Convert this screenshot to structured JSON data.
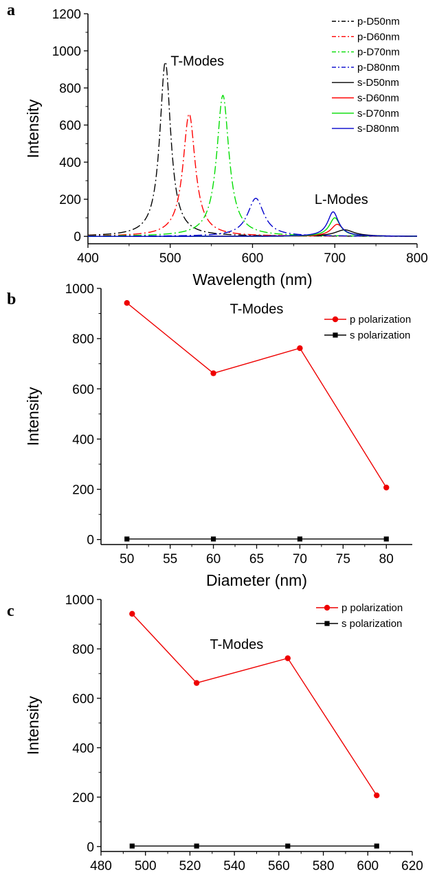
{
  "chart_data": [
    {
      "panel": "a",
      "type": "line",
      "xlabel": "Wavelength (nm)",
      "ylabel": "Intensity",
      "xlim": [
        400,
        800
      ],
      "ylim": [
        -40,
        1200
      ],
      "xticks": [
        400,
        500,
        600,
        700,
        800
      ],
      "yticks": [
        0,
        200,
        400,
        600,
        800,
        1000,
        1200
      ],
      "annotations": [
        {
          "text": "T-Modes",
          "x": 533,
          "y": 920
        },
        {
          "text": "L-Modes",
          "x": 708,
          "y": 175
        }
      ],
      "legend_position": "top-right",
      "series": [
        {
          "name": "p-D50nm",
          "color": "#000000",
          "dash": "dashdot",
          "peaks": [
            {
              "center": 494,
              "height": 940,
              "width": 8
            }
          ]
        },
        {
          "name": "p-D60nm",
          "color": "#ff0000",
          "dash": "dashdot",
          "peaks": [
            {
              "center": 523,
              "height": 660,
              "width": 9
            }
          ]
        },
        {
          "name": "p-D70nm",
          "color": "#00dd00",
          "dash": "dashdot",
          "peaks": [
            {
              "center": 564,
              "height": 760,
              "width": 9
            }
          ]
        },
        {
          "name": "p-D80nm",
          "color": "#0000cc",
          "dash": "dashdot",
          "peaks": [
            {
              "center": 604,
              "height": 205,
              "width": 12
            }
          ]
        },
        {
          "name": "s-D50nm",
          "color": "#000000",
          "dash": "solid",
          "peaks": [
            {
              "center": 712,
              "height": 35,
              "width": 14
            }
          ]
        },
        {
          "name": "s-D60nm",
          "color": "#ff0000",
          "dash": "solid",
          "peaks": [
            {
              "center": 703,
              "height": 65,
              "width": 9
            }
          ]
        },
        {
          "name": "s-D70nm",
          "color": "#00dd00",
          "dash": "solid",
          "peaks": [
            {
              "center": 700,
              "height": 100,
              "width": 8
            }
          ]
        },
        {
          "name": "s-D80nm",
          "color": "#0000cc",
          "dash": "solid",
          "peaks": [
            {
              "center": 698,
              "height": 132,
              "width": 8
            }
          ]
        }
      ]
    },
    {
      "panel": "b",
      "type": "line",
      "xlabel": "Diameter (nm)",
      "ylabel": "Intensity",
      "xlim": [
        47,
        83
      ],
      "ylim": [
        -20,
        1000
      ],
      "xticks": [
        50,
        55,
        60,
        65,
        70,
        75,
        80
      ],
      "yticks": [
        0,
        200,
        400,
        600,
        800,
        1000
      ],
      "annotations": [
        {
          "text": "T-Modes",
          "x": 65,
          "y": 900
        }
      ],
      "legend_position": "top-right",
      "series": [
        {
          "name": "p polarization",
          "color": "#ee0000",
          "marker": "circle",
          "x": [
            50,
            60,
            70,
            80
          ],
          "y": [
            942,
            662,
            762,
            207
          ]
        },
        {
          "name": "s polarization",
          "color": "#000000",
          "marker": "square",
          "x": [
            50,
            60,
            70,
            80
          ],
          "y": [
            2,
            2,
            2,
            2
          ]
        }
      ]
    },
    {
      "panel": "c",
      "type": "line",
      "xlabel": "Wavelength (nm)",
      "ylabel": "Intensity",
      "xlim": [
        480,
        620
      ],
      "ylim": [
        -20,
        1000
      ],
      "xticks": [
        480,
        500,
        520,
        540,
        560,
        580,
        600,
        620
      ],
      "yticks": [
        0,
        200,
        400,
        600,
        800,
        1000
      ],
      "annotations": [
        {
          "text": "T-Modes",
          "x": 541,
          "y": 800
        }
      ],
      "legend_position": "top-right",
      "series": [
        {
          "name": "p polarization",
          "color": "#ee0000",
          "marker": "circle",
          "x": [
            494,
            523,
            564,
            604
          ],
          "y": [
            942,
            662,
            762,
            207
          ]
        },
        {
          "name": "s polarization",
          "color": "#000000",
          "marker": "square",
          "x": [
            494,
            523,
            564,
            604
          ],
          "y": [
            2,
            2,
            2,
            2
          ]
        }
      ]
    }
  ]
}
